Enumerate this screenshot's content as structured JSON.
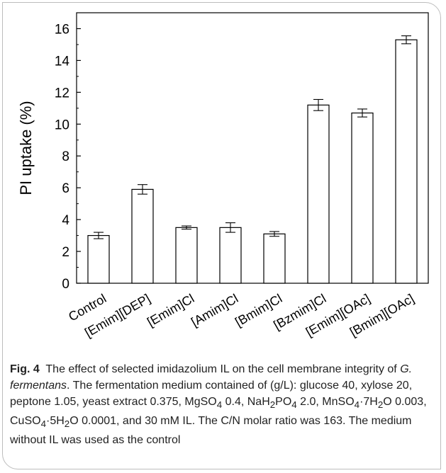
{
  "chart_data": {
    "type": "bar",
    "title": "",
    "xlabel": "",
    "ylabel": "PI uptake (%)",
    "ylim": [
      0,
      17
    ],
    "yticks": [
      0,
      2,
      4,
      6,
      8,
      10,
      12,
      14,
      16
    ],
    "grid": false,
    "categories": [
      "Control",
      "[Emim][DEP]",
      "[Emim]Cl",
      "[Amim]Cl",
      "[Bmim]Cl",
      "[Bzmim]Cl",
      "[Emim][OAc]",
      "[Bmim][OAc]"
    ],
    "values": [
      3.0,
      5.9,
      3.5,
      3.5,
      3.1,
      11.2,
      10.7,
      15.3
    ],
    "errors": [
      0.2,
      0.3,
      0.1,
      0.3,
      0.15,
      0.35,
      0.25,
      0.25
    ]
  },
  "caption": {
    "label": "Fig. 4",
    "text_1": "The effect of selected imidazolium IL on the cell membrane integrity of ",
    "organism": "G. fermentans",
    "text_2": ". The fermentation medium contained of (g/L): glucose 40, xylose 20, peptone 1.05, yeast extract 0.375, MgSO",
    "sub_1": "4",
    "text_3": " 0.4, NaH",
    "sub_2": "2",
    "text_4": "PO",
    "sub_3": "4",
    "text_5": " 2.0, MnSO",
    "sub_4": "4",
    "text_6": "·7H",
    "sub_5": "2",
    "text_7": "O 0.003, CuSO",
    "sub_6": "4",
    "text_8": "·5H",
    "sub_7": "2",
    "text_9": "O 0.0001, and 30 mM IL. The C/N molar ratio was 163. The medium without IL was used as the control"
  }
}
